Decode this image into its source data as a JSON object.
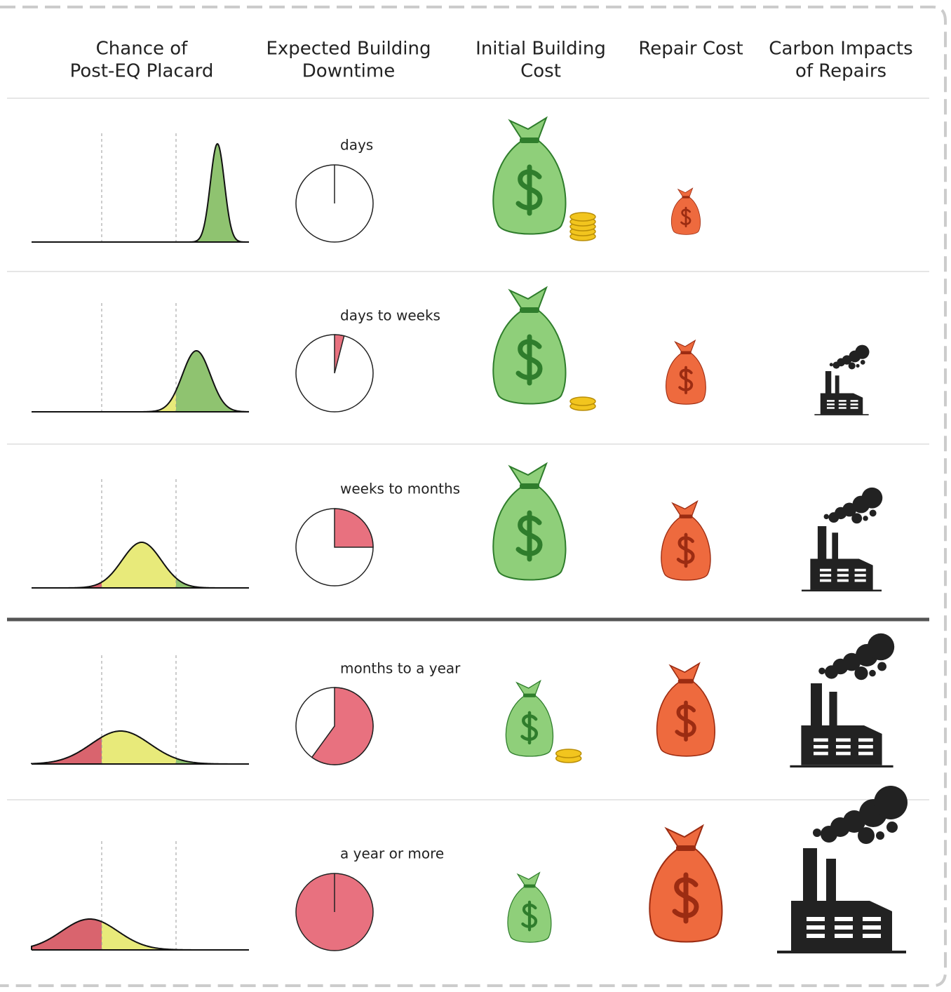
{
  "header": {
    "columns": [
      [
        "Chance of",
        "Post-EQ Placard"
      ],
      [
        "Expected Building",
        "Downtime"
      ],
      [
        "Initial Building",
        "Cost"
      ],
      [
        "Repair Cost"
      ],
      [
        "Carbon Impacts",
        "of Repairs"
      ]
    ]
  },
  "rows": [
    {
      "downtime": "days"
    },
    {
      "downtime": "days to weeks"
    },
    {
      "downtime": "weeks to months"
    },
    {
      "downtime": "months to a year"
    },
    {
      "downtime": "a year or more"
    }
  ]
}
